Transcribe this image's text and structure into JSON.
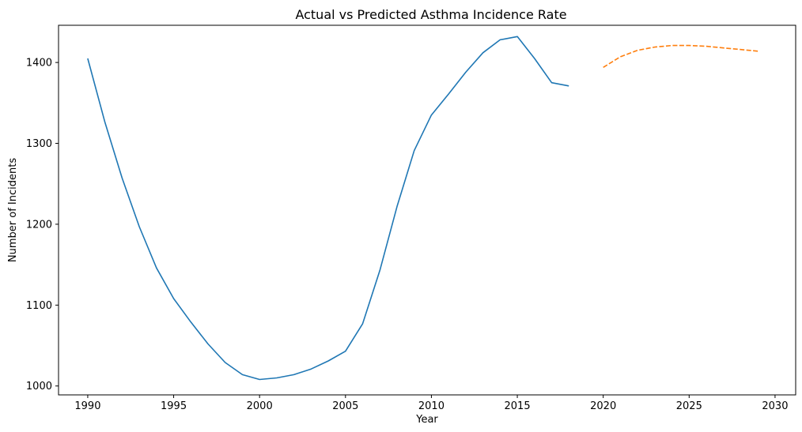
{
  "chart_data": {
    "type": "line",
    "title": "Actual vs Predicted Asthma Incidence Rate",
    "xlabel": "Year",
    "ylabel": "Number of Incidents",
    "xlim": [
      1988.3,
      2031.2
    ],
    "ylim": [
      989,
      1446
    ],
    "xticks": [
      1990,
      1995,
      2000,
      2005,
      2010,
      2015,
      2020,
      2025,
      2030
    ],
    "yticks": [
      1000,
      1100,
      1200,
      1300,
      1400
    ],
    "grid": false,
    "legend": "none",
    "series": [
      {
        "style": "solid",
        "color": "#1f77b4",
        "x": [
          1990,
          1991,
          1992,
          1993,
          1994,
          1995,
          1996,
          1997,
          1998,
          1999,
          2000,
          2001,
          2002,
          2003,
          2004,
          2005,
          2006,
          2007,
          2008,
          2009,
          2010,
          2011,
          2012,
          2013,
          2014,
          2015,
          2016,
          2017,
          2018
        ],
        "y": [
          1405,
          1326,
          1257,
          1197,
          1146,
          1108,
          1079,
          1052,
          1029,
          1014,
          1008,
          1010,
          1014,
          1021,
          1031,
          1043,
          1077,
          1143,
          1222,
          1291,
          1335,
          1361,
          1388,
          1412,
          1428,
          1432,
          1405,
          1375,
          1371
        ]
      },
      {
        "style": "dashed",
        "color": "#ff7f0e",
        "x": [
          2020,
          2021,
          2022,
          2023,
          2024,
          2025,
          2026,
          2027,
          2028,
          2029
        ],
        "y": [
          1394,
          1407,
          1415,
          1419,
          1421,
          1421,
          1420,
          1418,
          1416,
          1414
        ]
      }
    ]
  }
}
